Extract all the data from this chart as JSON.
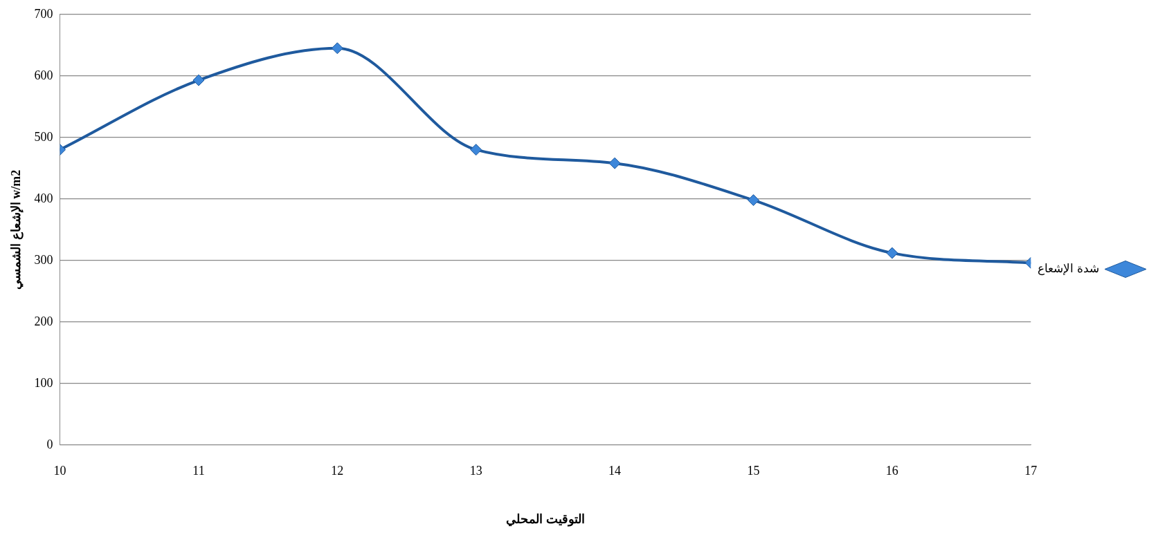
{
  "chart_data": {
    "type": "line",
    "xlabel": "التوقيت المحلي",
    "ylabel": "الإشعاع الشمسي w/m2",
    "x": [
      10,
      11,
      12,
      13,
      14,
      15,
      16,
      17
    ],
    "series": [
      {
        "name": "شدة الإشعاع",
        "color": "#1f5a9e",
        "values": [
          480,
          593,
          645,
          480,
          458,
          398,
          312,
          296
        ]
      }
    ],
    "xlim": [
      10,
      17
    ],
    "xticks": [
      10,
      11,
      12,
      13,
      14,
      15,
      16,
      17
    ],
    "ylim": [
      0,
      700
    ],
    "yticks": [
      0,
      100,
      200,
      300,
      400,
      500,
      600,
      700
    ],
    "grid": "y",
    "legend": "right",
    "marker": "diamond",
    "line_style": "solid"
  }
}
